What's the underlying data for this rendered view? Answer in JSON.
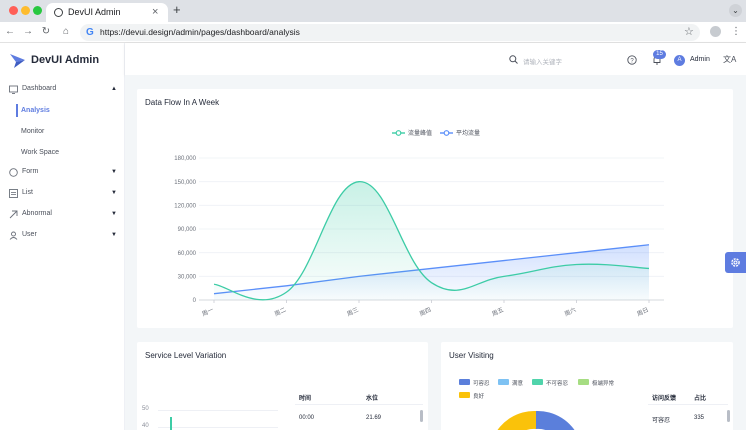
{
  "browser": {
    "tab_title": "DevUI Admin",
    "tab_close": "×",
    "new_tab": "+",
    "url": "https://devui.design/admin/pages/dashboard/analysis"
  },
  "app": {
    "name": "DevUI Admin"
  },
  "sidebar": {
    "items": [
      {
        "label": "Dashboard",
        "icon": "dashboard-icon",
        "expanded": true
      },
      {
        "label": "Form",
        "icon": "form-icon"
      },
      {
        "label": "List",
        "icon": "list-icon"
      },
      {
        "label": "Abnormal",
        "icon": "abnormal-icon"
      },
      {
        "label": "User",
        "icon": "user-icon"
      }
    ],
    "dashboard_children": [
      {
        "label": "Analysis",
        "active": true
      },
      {
        "label": "Monitor"
      },
      {
        "label": "Work Space"
      }
    ]
  },
  "header": {
    "search_placeholder": "请输入关键字",
    "notification_count": "15",
    "user_initial": "A",
    "user_name": "Admin"
  },
  "cards": {
    "data_flow_title": "Data Flow In A Week",
    "service_title": "Service Level Variation",
    "user_visiting_title": "User Visiting"
  },
  "service": {
    "table_headers": [
      "时间",
      "水位"
    ],
    "rows": [
      [
        "00:00",
        "21.69"
      ]
    ],
    "y_ticks": [
      "50",
      "40"
    ]
  },
  "user_visiting": {
    "legend": [
      {
        "label": "可容忍",
        "color": "#5b7fdb"
      },
      {
        "label": "满意",
        "color": "#7ec2f3"
      },
      {
        "label": "不可容忍",
        "color": "#50d4ab"
      },
      {
        "label": "极端异常",
        "color": "#a6dd82"
      },
      {
        "label": "良好",
        "color": "#fac20a"
      }
    ],
    "table_headers": [
      "访问反馈",
      "占比"
    ],
    "rows": [
      [
        "可容忍",
        "335"
      ]
    ]
  },
  "colors": {
    "primary": "#5e7ce0",
    "series_peak": "#3dcca6",
    "series_avg": "#5b8ff9"
  },
  "chart_data": {
    "type": "line",
    "title": "",
    "categories": [
      "周一",
      "周二",
      "周三",
      "周四",
      "周五",
      "周六",
      "周日"
    ],
    "series": [
      {
        "name": "流量峰值",
        "values": [
          20000,
          10000,
          150000,
          22000,
          30000,
          45000,
          40000
        ],
        "color": "#3dcca6",
        "smooth": true,
        "area": true
      },
      {
        "name": "平均流量",
        "values": [
          8000,
          18000,
          30000,
          40000,
          50000,
          60000,
          70000
        ],
        "color": "#5b8ff9",
        "smooth": false,
        "area": true
      }
    ],
    "yticks": [
      "0",
      "30,000",
      "60,000",
      "90,000",
      "120,000",
      "150,000",
      "180,000"
    ],
    "ylim": [
      0,
      180000
    ],
    "grid": true,
    "legend_position": "top-center"
  }
}
